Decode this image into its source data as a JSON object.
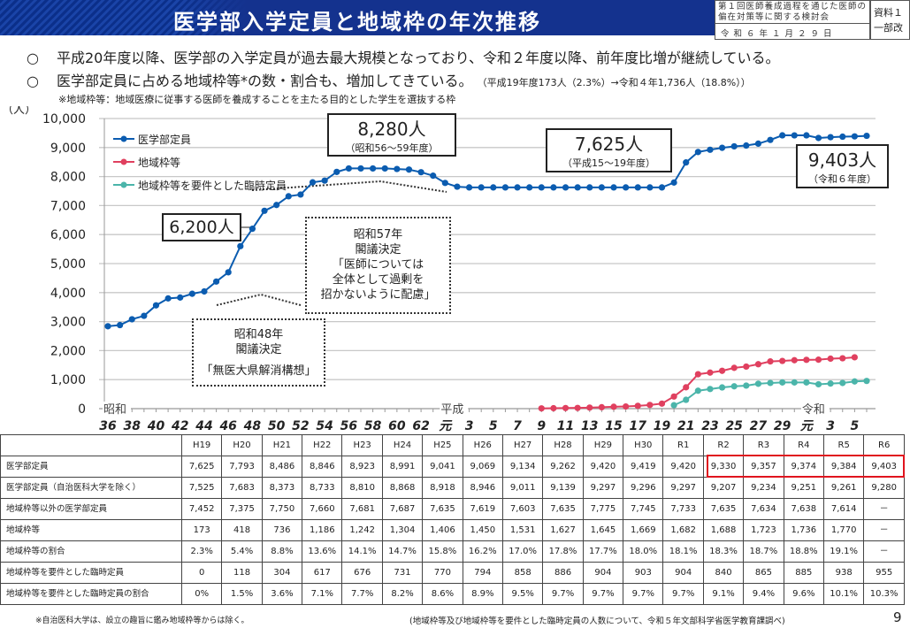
{
  "header": {
    "title": "医学部入学定員と地域枠の年次推移",
    "meta_line1": "第１回医師養成過程を通じた医師の偏在対策等に関する検討会",
    "meta_line2": "令和６年１月２９日",
    "tag_line1": "資料１",
    "tag_line2": "一部改"
  },
  "bullets": [
    {
      "mark": "○",
      "text": "平成20年度以降、医学部の入学定員が過去最大規模となっており、令和２年度以降、前年度比増が継続している。"
    },
    {
      "mark": "○",
      "text": "医学部定員に占める地域枠等*の数・割合も、増加してきている。",
      "note": "（平成19年度173人（2.3%）→令和４年1,736人（18.8%））"
    }
  ],
  "footnote_top": "※地域枠等：地域医療に従事する医師を養成することを主たる目的とした学生を選抜する枠",
  "callouts": {
    "peak": {
      "value": "8,280人",
      "period": "（昭和56〜59年度）"
    },
    "flat": {
      "value": "7,625人",
      "period": "（平成15〜19年度）"
    },
    "latest": {
      "value": "9,403人",
      "period": "（令和６年度）"
    },
    "s48": {
      "value": "6,200人"
    },
    "decision57": {
      "l1": "昭和57年",
      "l2": "閣議決定",
      "l3": "「医師については",
      "l4": "全体として過剰を",
      "l5": "招かないように配慮」"
    },
    "decision48": {
      "l1": "昭和48年",
      "l2": "閣議決定",
      "l3": "「無医大県解消構想」"
    }
  },
  "chart_data": {
    "type": "line",
    "ylabel": "（人）",
    "ylim": [
      0,
      10000
    ],
    "yticks": [
      "0",
      "1,000",
      "2,000",
      "3,000",
      "4,000",
      "5,000",
      "6,000",
      "7,000",
      "8,000",
      "9,000",
      "10,000"
    ],
    "x_years": [
      1961,
      2024
    ],
    "era_labels": [
      {
        "label": "昭和",
        "index": 0
      },
      {
        "label": "平成",
        "index": 28
      },
      {
        "label": "令和",
        "index": 58
      }
    ],
    "xtick_labels": [
      {
        "i": 0,
        "t": "36"
      },
      {
        "i": 2,
        "t": "38"
      },
      {
        "i": 4,
        "t": "40"
      },
      {
        "i": 6,
        "t": "42"
      },
      {
        "i": 8,
        "t": "44"
      },
      {
        "i": 10,
        "t": "46"
      },
      {
        "i": 12,
        "t": "48"
      },
      {
        "i": 14,
        "t": "50"
      },
      {
        "i": 16,
        "t": "52"
      },
      {
        "i": 18,
        "t": "54"
      },
      {
        "i": 20,
        "t": "56"
      },
      {
        "i": 22,
        "t": "58"
      },
      {
        "i": 24,
        "t": "60"
      },
      {
        "i": 26,
        "t": "62"
      },
      {
        "i": 28,
        "t": "元"
      },
      {
        "i": 30,
        "t": "3"
      },
      {
        "i": 32,
        "t": "5"
      },
      {
        "i": 34,
        "t": "7"
      },
      {
        "i": 36,
        "t": "9"
      },
      {
        "i": 38,
        "t": "11"
      },
      {
        "i": 40,
        "t": "13"
      },
      {
        "i": 42,
        "t": "15"
      },
      {
        "i": 44,
        "t": "17"
      },
      {
        "i": 46,
        "t": "19"
      },
      {
        "i": 48,
        "t": "21"
      },
      {
        "i": 50,
        "t": "23"
      },
      {
        "i": 52,
        "t": "25"
      },
      {
        "i": 54,
        "t": "27"
      },
      {
        "i": 56,
        "t": "29"
      },
      {
        "i": 58,
        "t": "元"
      },
      {
        "i": 60,
        "t": "3"
      },
      {
        "i": 62,
        "t": "5"
      }
    ],
    "legend": "top-left",
    "series": [
      {
        "name": "医学部定員",
        "color": "#0b5cb0",
        "start_index": 0,
        "values": [
          2840,
          2880,
          3080,
          3200,
          3560,
          3800,
          3830,
          3960,
          4040,
          4380,
          4700,
          5600,
          6200,
          6820,
          7020,
          7320,
          7380,
          7800,
          7860,
          8160,
          8280,
          8280,
          8280,
          8280,
          8260,
          8240,
          8150,
          8030,
          7780,
          7650,
          7625,
          7625,
          7625,
          7625,
          7625,
          7625,
          7625,
          7625,
          7625,
          7625,
          7625,
          7625,
          7625,
          7625,
          7625,
          7625,
          7625,
          7793,
          8486,
          8846,
          8923,
          8991,
          9041,
          9069,
          9134,
          9262,
          9420,
          9419,
          9420,
          9330,
          9357,
          9374,
          9384,
          9403
        ]
      },
      {
        "name": "地域枠等",
        "color": "#e0405f",
        "start_index": 36,
        "values": [
          9,
          15,
          21,
          25,
          36,
          49,
          64,
          75,
          97,
          127,
          173,
          418,
          736,
          1186,
          1242,
          1304,
          1406,
          1450,
          1531,
          1627,
          1645,
          1669,
          1682,
          1688,
          1723,
          1736,
          1770
        ]
      },
      {
        "name": "地域枠等を要件とした臨時定員",
        "color": "#4bb5aa",
        "start_index": 47,
        "values": [
          118,
          304,
          617,
          676,
          731,
          770,
          794,
          858,
          886,
          904,
          903,
          904,
          840,
          865,
          885,
          938,
          955
        ]
      }
    ]
  },
  "table": {
    "columns": [
      "H19",
      "H20",
      "H21",
      "H22",
      "H23",
      "H24",
      "H25",
      "H26",
      "H27",
      "H28",
      "H29",
      "H30",
      "R1",
      "R2",
      "R3",
      "R4",
      "R5",
      "R6"
    ],
    "rows": [
      {
        "label": "医学部定員",
        "cells": [
          "7,625",
          "7,793",
          "8,486",
          "8,846",
          "8,923",
          "8,991",
          "9,041",
          "9,069",
          "9,134",
          "9,262",
          "9,420",
          "9,419",
          "9,420",
          "9,330",
          "9,357",
          "9,374",
          "9,384",
          "9,403"
        ]
      },
      {
        "label": "医学部定員（自治医科大学を除く）",
        "cells": [
          "7,525",
          "7,683",
          "8,373",
          "8,733",
          "8,810",
          "8,868",
          "8,918",
          "8,946",
          "9,011",
          "9,139",
          "9,297",
          "9,296",
          "9,297",
          "9,207",
          "9,234",
          "9,251",
          "9,261",
          "9,280"
        ]
      },
      {
        "label": "地域枠等以外の医学部定員",
        "cells": [
          "7,452",
          "7,375",
          "7,750",
          "7,660",
          "7,681",
          "7,687",
          "7,635",
          "7,619",
          "7,603",
          "7,635",
          "7,775",
          "7,745",
          "7,733",
          "7,635",
          "7,634",
          "7,638",
          "7,614",
          "－"
        ]
      },
      {
        "label": "地域枠等",
        "cells": [
          "173",
          "418",
          "736",
          "1,186",
          "1,242",
          "1,304",
          "1,406",
          "1,450",
          "1,531",
          "1,627",
          "1,645",
          "1,669",
          "1,682",
          "1,688",
          "1,723",
          "1,736",
          "1,770",
          "－"
        ]
      },
      {
        "label": "地域枠等の割合",
        "cells": [
          "2.3%",
          "5.4%",
          "8.8%",
          "13.6%",
          "14.1%",
          "14.7%",
          "15.8%",
          "16.2%",
          "17.0%",
          "17.8%",
          "17.7%",
          "18.0%",
          "18.1%",
          "18.3%",
          "18.7%",
          "18.8%",
          "19.1%",
          "－"
        ]
      },
      {
        "label": "地域枠等を要件とした臨時定員",
        "cells": [
          "0",
          "118",
          "304",
          "617",
          "676",
          "731",
          "770",
          "794",
          "858",
          "886",
          "904",
          "903",
          "904",
          "840",
          "865",
          "885",
          "938",
          "955"
        ]
      },
      {
        "label": "地域枠等を要件とした臨時定員の割合",
        "cells": [
          "0%",
          "1.5%",
          "3.6%",
          "7.1%",
          "7.7%",
          "8.2%",
          "8.6%",
          "8.9%",
          "9.5%",
          "9.7%",
          "9.7%",
          "9.7%",
          "9.7%",
          "9.1%",
          "9.4%",
          "9.6%",
          "10.1%",
          "10.3%"
        ]
      }
    ]
  },
  "footer": {
    "left": "※自治医科大学は、設立の趣旨に鑑み地域枠等からは除く。",
    "right": "(地域枠等及び地域枠等を要件とした臨時定員の人数について、令和５年文部科学省医学教育課調べ)",
    "page": "9"
  }
}
